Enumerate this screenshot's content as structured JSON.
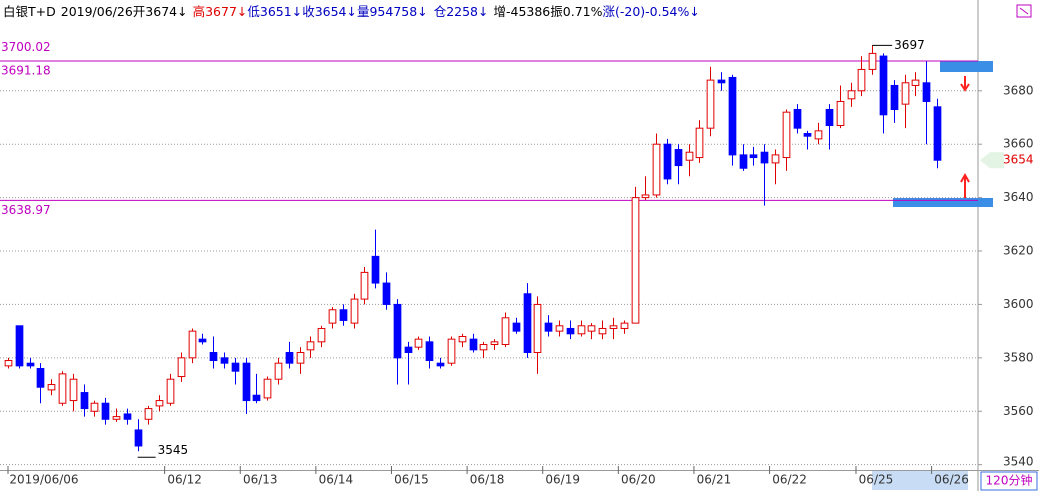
{
  "chart_data": {
    "type": "candlestick",
    "header": [
      {
        "text": "白银T+D",
        "color": "#000000"
      },
      {
        "text": "2019/06/26",
        "color": "#000000"
      },
      {
        "text": "开3674↓",
        "color": "#000000"
      },
      {
        "text": "高3677↓",
        "color": "#e00000"
      },
      {
        "text": "低3651↓",
        "color": "#0000c0"
      },
      {
        "text": "收3654↓",
        "color": "#0000c0"
      },
      {
        "text": "量954758↓",
        "color": "#0000c0"
      },
      {
        "text": "仓2258↓",
        "color": "#0000c0"
      },
      {
        "text": "增-45386",
        "color": "#000000"
      },
      {
        "text": "振0.71%",
        "color": "#000000"
      },
      {
        "text": "涨(-20)-0.54%↓",
        "color": "#0000c0"
      }
    ],
    "period": "120分钟",
    "categories": [
      "2019/06/06",
      null,
      null,
      null,
      null,
      null,
      null,
      null,
      null,
      null,
      null,
      null,
      null,
      null,
      null,
      "06/12",
      null,
      null,
      null,
      null,
      null,
      null,
      "06/13",
      null,
      null,
      null,
      null,
      null,
      null,
      "06/14",
      null,
      null,
      null,
      null,
      null,
      null,
      "06/15",
      null,
      null,
      null,
      null,
      null,
      null,
      "06/18",
      null,
      null,
      null,
      null,
      null,
      null,
      "06/19",
      null,
      null,
      null,
      null,
      null,
      null,
      "06/20",
      null,
      null,
      null,
      null,
      null,
      null,
      "06/21",
      null,
      null,
      null,
      null,
      null,
      null,
      "06/22",
      null,
      null,
      null,
      null,
      null,
      null,
      null,
      "06/25",
      null,
      null,
      null,
      null,
      null,
      null,
      "06/26"
    ],
    "open": [
      3577,
      3592,
      3578,
      3576,
      3568,
      3563,
      3564,
      3567,
      3560,
      3563,
      3557,
      3559,
      3553,
      3557,
      3562,
      3563,
      3573,
      3580,
      3587,
      3582,
      3580,
      3578,
      3578,
      3566,
      3565,
      3572,
      3582,
      3578,
      3583,
      3586,
      3593,
      3598,
      3593,
      3602,
      3618,
      3608,
      3600,
      3584,
      3584,
      3586,
      3578,
      3578,
      3586,
      3587,
      3583,
      3585,
      3585,
      3593,
      3604,
      3582,
      3593,
      3590,
      3591,
      3589,
      3590,
      3589,
      3591,
      3591,
      3593,
      3640,
      3641,
      3660,
      3658,
      3654,
      3655,
      3666,
      3684,
      3685,
      3656,
      3656,
      3657,
      3653,
      3655,
      3673,
      3664,
      3662,
      3673,
      3667,
      3677,
      3680,
      3688,
      3693,
      3682,
      3675,
      3682,
      3683,
      3674
    ],
    "high": [
      3580,
      3592,
      3580,
      3578,
      3572,
      3575,
      3574,
      3570,
      3564,
      3565,
      3561,
      3561,
      3557,
      3562,
      3566,
      3574,
      3582,
      3591,
      3589,
      3588,
      3582,
      3580,
      3580,
      3574,
      3573,
      3580,
      3586,
      3584,
      3588,
      3592,
      3599,
      3600,
      3604,
      3614,
      3628,
      3612,
      3602,
      3586,
      3588,
      3588,
      3580,
      3588,
      3589,
      3589,
      3586,
      3587,
      3597,
      3595,
      3608,
      3603,
      3596,
      3594,
      3594,
      3594,
      3593,
      3594,
      3595,
      3594,
      3644,
      3648,
      3664,
      3662,
      3660,
      3660,
      3669,
      3689,
      3687,
      3686,
      3660,
      3659,
      3660,
      3658,
      3673,
      3675,
      3665,
      3668,
      3675,
      3682,
      3683,
      3693,
      3697,
      3694,
      3684,
      3686,
      3687,
      3691,
      3677
    ],
    "low": [
      3576,
      3576,
      3576,
      3563,
      3566,
      3562,
      3560,
      3558,
      3558,
      3555,
      3556,
      3555,
      3545,
      3555,
      3560,
      3562,
      3571,
      3578,
      3585,
      3576,
      3576,
      3570,
      3559,
      3563,
      3564,
      3570,
      3576,
      3574,
      3580,
      3584,
      3591,
      3592,
      3591,
      3600,
      3606,
      3598,
      3570,
      3570,
      3583,
      3576,
      3576,
      3577,
      3584,
      3582,
      3580,
      3583,
      3584,
      3589,
      3580,
      3574,
      3588,
      3588,
      3587,
      3588,
      3587,
      3587,
      3587,
      3589,
      3593,
      3639,
      3640,
      3645,
      3645,
      3648,
      3653,
      3663,
      3680,
      3652,
      3650,
      3652,
      3637,
      3645,
      3650,
      3664,
      3658,
      3660,
      3658,
      3666,
      3674,
      3678,
      3686,
      3664,
      3668,
      3666,
      3678,
      3660,
      3651
    ],
    "close": [
      3579,
      3577,
      3577,
      3569,
      3570,
      3574,
      3572,
      3561,
      3563,
      3557,
      3558,
      3557,
      3547,
      3561,
      3564,
      3572,
      3580,
      3590,
      3586,
      3579,
      3578,
      3575,
      3564,
      3564,
      3572,
      3578,
      3578,
      3582,
      3586,
      3591,
      3598,
      3594,
      3602,
      3612,
      3608,
      3600,
      3580,
      3582,
      3587,
      3579,
      3577,
      3587,
      3588,
      3583,
      3585,
      3586,
      3595,
      3590,
      3582,
      3600,
      3590,
      3592,
      3589,
      3592,
      3592,
      3591,
      3592,
      3593,
      3640,
      3641,
      3660,
      3647,
      3652,
      3657,
      3666,
      3684,
      3683,
      3656,
      3651,
      3655,
      3653,
      3656,
      3672,
      3666,
      3663,
      3665,
      3667,
      3676,
      3680,
      3688,
      3694,
      3671,
      3673,
      3683,
      3684,
      3676,
      3654
    ],
    "up_color": "#e00000",
    "down_color": "#0000ff",
    "ylim": [
      3538,
      3714
    ],
    "yticks": [
      3540,
      3560,
      3580,
      3600,
      3620,
      3640,
      3660,
      3680
    ],
    "grid": true,
    "top_price": 3700.02,
    "levels": [
      3691.18,
      3638.97
    ],
    "level_color": "#c000c0",
    "max_label": 3697,
    "min_label": 3545,
    "last_price": 3654
  }
}
